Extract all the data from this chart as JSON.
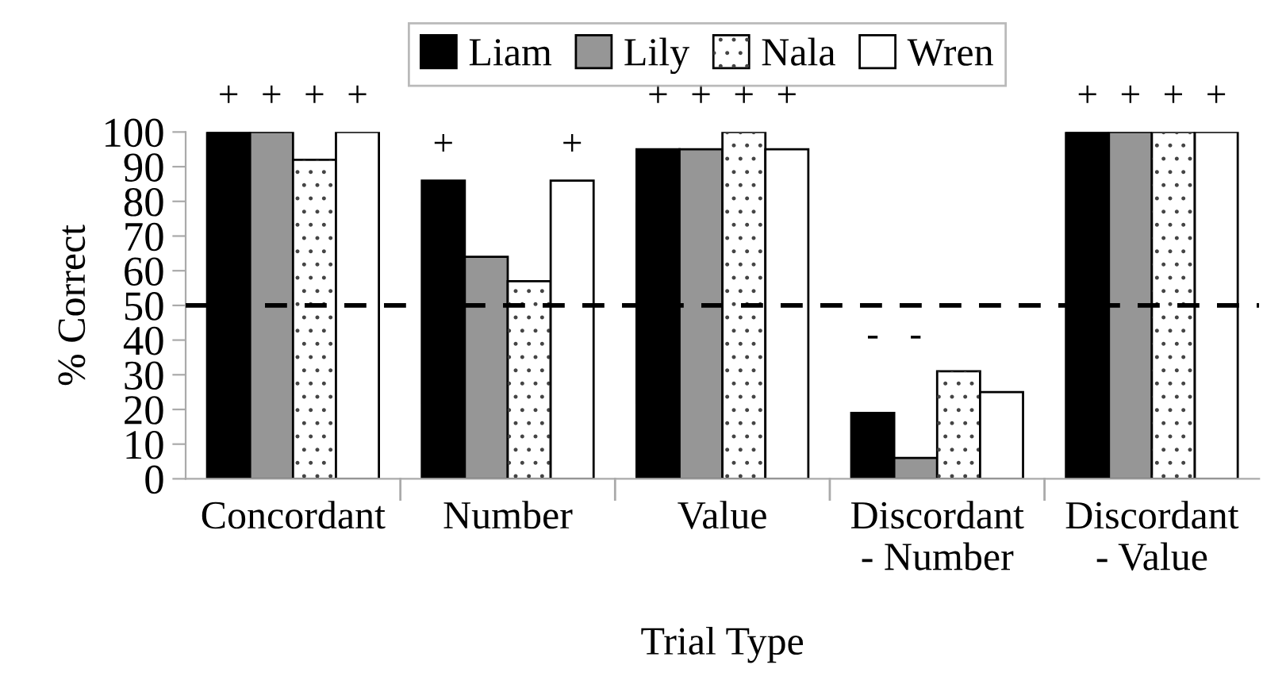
{
  "chart_data": {
    "type": "bar",
    "xlabel": "Trial Type",
    "ylabel": "% Correct",
    "categories": [
      "Concordant",
      "Number",
      "Value",
      "Discordant\n- Number",
      "Discordant\n- Value"
    ],
    "series": [
      {
        "name": "Liam",
        "color": "#000000",
        "values": [
          100,
          86,
          95,
          19,
          100
        ],
        "value_labels": [
          "+",
          "+",
          "+",
          "-",
          "+"
        ]
      },
      {
        "name": "Lily",
        "color": "#969696",
        "values": [
          100,
          64,
          95,
          6,
          100
        ],
        "value_labels": [
          "+",
          null,
          "+",
          "-",
          "+"
        ]
      },
      {
        "name": "Nala",
        "color": "#ffffff",
        "values": [
          92,
          57,
          100,
          31,
          100
        ],
        "value_labels": [
          "+",
          null,
          "+",
          null,
          "+"
        ]
      },
      {
        "name": "Wren",
        "color": "#ffffff",
        "values": [
          100,
          86,
          95,
          25,
          100
        ],
        "value_labels": [
          "+",
          "+",
          "+",
          null,
          "+"
        ]
      }
    ],
    "ylim": [
      0,
      100
    ],
    "yticks": [
      0,
      10,
      20,
      30,
      40,
      50,
      60,
      70,
      80,
      90,
      100
    ],
    "ref_lines": [
      {
        "axis": "y",
        "value": 50,
        "line_style": "dashed",
        "color": "#000000"
      }
    ],
    "legend": "top",
    "grid": false
  }
}
